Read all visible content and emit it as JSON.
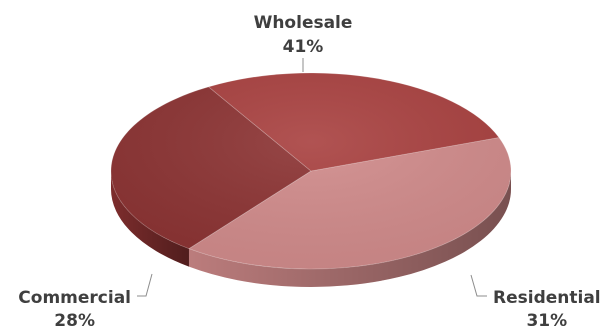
{
  "chart_data": {
    "type": "pie",
    "style": "3d-perspective",
    "categories": [
      "Wholesale",
      "Residential",
      "Commercial"
    ],
    "values": [
      41,
      31,
      28
    ],
    "value_labels": [
      "41%",
      "31%",
      "28%"
    ],
    "title": "",
    "legend": "none",
    "label_position": "outside-with-leader-lines",
    "colors": {
      "Wholesale": "#d08a8a",
      "Residential": "#8b3232",
      "Commercial": "#a8403f"
    }
  }
}
